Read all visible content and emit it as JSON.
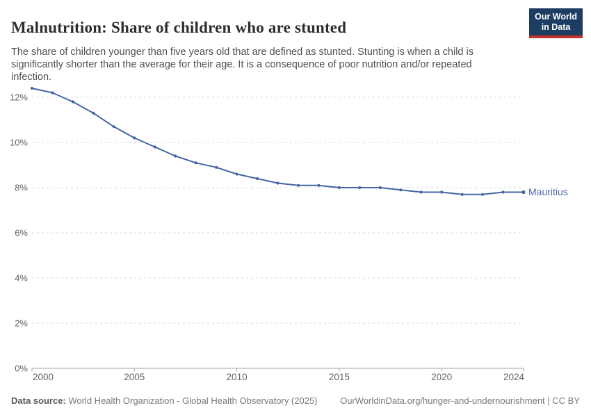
{
  "header": {
    "title": "Malnutrition: Share of children who are stunted",
    "subtitle": "The share of children younger than five years old that are defined as stunted. Stunting is when a child is\nsignificantly shorter than the average for their age. It is a consequence of poor nutrition and/or repeated\ninfection."
  },
  "logo": {
    "line1": "Our World",
    "line2": "in Data",
    "bg_color": "#1d3d63",
    "accent_color": "#c7302b"
  },
  "chart_data": {
    "type": "line",
    "title": "Malnutrition: Share of children who are stunted",
    "x": [
      2000,
      2001,
      2002,
      2003,
      2004,
      2005,
      2006,
      2007,
      2008,
      2009,
      2010,
      2011,
      2012,
      2013,
      2014,
      2015,
      2016,
      2017,
      2018,
      2019,
      2020,
      2021,
      2022,
      2023,
      2024
    ],
    "series": [
      {
        "name": "Mauritius",
        "color": "#4664a5",
        "values": [
          12.4,
          12.2,
          11.8,
          11.3,
          10.7,
          10.2,
          9.8,
          9.4,
          9.1,
          8.9,
          8.6,
          8.4,
          8.2,
          8.1,
          8.1,
          8.0,
          8.0,
          8.0,
          7.9,
          7.8,
          7.8,
          7.7,
          7.7,
          7.8,
          7.8
        ]
      }
    ],
    "xlabel": "",
    "ylabel": "",
    "ylim": [
      0,
      12.5
    ],
    "yticks": [
      0,
      2,
      4,
      6,
      8,
      10,
      12
    ],
    "ytick_labels": [
      "0%",
      "2%",
      "4%",
      "6%",
      "8%",
      "10%",
      "12%"
    ],
    "xticks": [
      2000,
      2005,
      2010,
      2015,
      2020,
      2024
    ],
    "xtick_labels": [
      "2000",
      "2005",
      "2010",
      "2015",
      "2020",
      "2024"
    ],
    "grid": true,
    "grid_style": "dashed",
    "legend": "end-of-line-label",
    "colors": {
      "grid": "#d9d9d9",
      "axis": "#a3a3a3",
      "tick_text": "#636363",
      "series_label": "#4a67a3"
    }
  },
  "footer": {
    "source_label": "Data source:",
    "source_text": " World Health Organization - Global Health Observatory (2025)",
    "link_text": "OurWorldinData.org/hunger-and-undernourishment | CC BY"
  }
}
